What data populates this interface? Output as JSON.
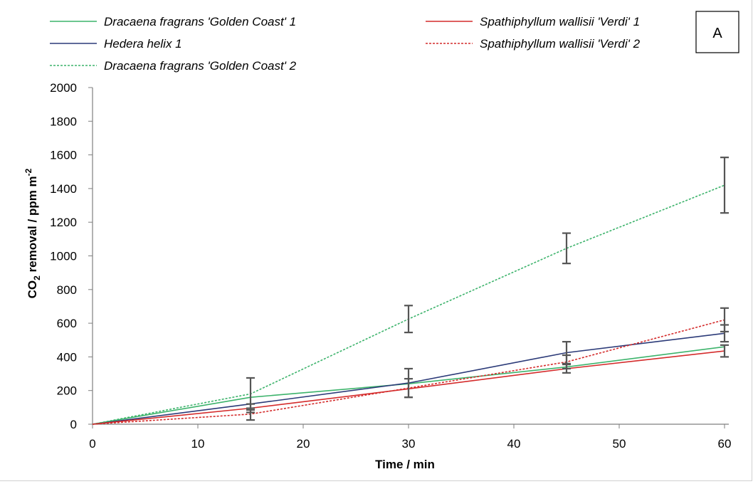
{
  "chart_data": {
    "type": "line",
    "panel_label": "A",
    "xlabel": "Time / min",
    "ylabel_main": "CO",
    "ylabel_sub": "2",
    "ylabel_rest": " removal / ppm m",
    "ylabel_sup": "-2",
    "xlim": [
      0,
      60
    ],
    "ylim": [
      0,
      2000
    ],
    "x_ticks": [
      0,
      10,
      20,
      30,
      40,
      50,
      60
    ],
    "y_ticks": [
      0,
      200,
      400,
      600,
      800,
      1000,
      1200,
      1400,
      1600,
      1800,
      2000
    ],
    "grid": false,
    "legend_position": "top",
    "series": [
      {
        "name": "Dracaena fragrans 'Golden Coast' 1",
        "color": "#3cb36b",
        "dash": false,
        "x": [
          0,
          15,
          30,
          45,
          60
        ],
        "y": [
          0,
          160,
          240,
          340,
          460
        ]
      },
      {
        "name": "Hedera helix 1",
        "color": "#2b3a78",
        "dash": false,
        "x": [
          0,
          15,
          30,
          45,
          60
        ],
        "y": [
          0,
          120,
          245,
          425,
          540
        ]
      },
      {
        "name": "Dracaena fragrans 'Golden Coast' 2",
        "color": "#3cb36b",
        "dash": true,
        "x": [
          0,
          15,
          30,
          45,
          60
        ],
        "y": [
          0,
          180,
          625,
          1045,
          1420
        ],
        "err": [
          0,
          95,
          80,
          90,
          165
        ]
      },
      {
        "name": "Spathiphyllum wallisii 'Verdi' 1",
        "color": "#d42b2b",
        "dash": false,
        "x": [
          0,
          15,
          30,
          45,
          60
        ],
        "y": [
          0,
          95,
          210,
          330,
          435
        ]
      },
      {
        "name": "Spathiphyllum wallisii 'Verdi' 2",
        "color": "#d42b2b",
        "dash": true,
        "x": [
          0,
          15,
          30,
          45,
          60
        ],
        "y": [
          0,
          60,
          215,
          370,
          620
        ],
        "err": [
          0,
          35,
          55,
          40,
          70
        ]
      }
    ],
    "error_bars_extra": [
      {
        "x": 15,
        "y": 95,
        "err": 25
      },
      {
        "x": 30,
        "y": 245,
        "err": 85
      },
      {
        "x": 45,
        "y": 425,
        "err": 65
      },
      {
        "x": 60,
        "y": 540,
        "err": 50
      },
      {
        "x": 60,
        "y": 435,
        "err": 35
      },
      {
        "x": 45,
        "y": 330,
        "err": 25
      }
    ],
    "legend_columns": [
      [
        "Dracaena fragrans 'Golden Coast' 1",
        "Hedera helix 1",
        "Dracaena fragrans 'Golden Coast' 2"
      ],
      [
        "Spathiphyllum wallisii 'Verdi' 1",
        "Spathiphyllum wallisii 'Verdi' 2"
      ]
    ]
  }
}
